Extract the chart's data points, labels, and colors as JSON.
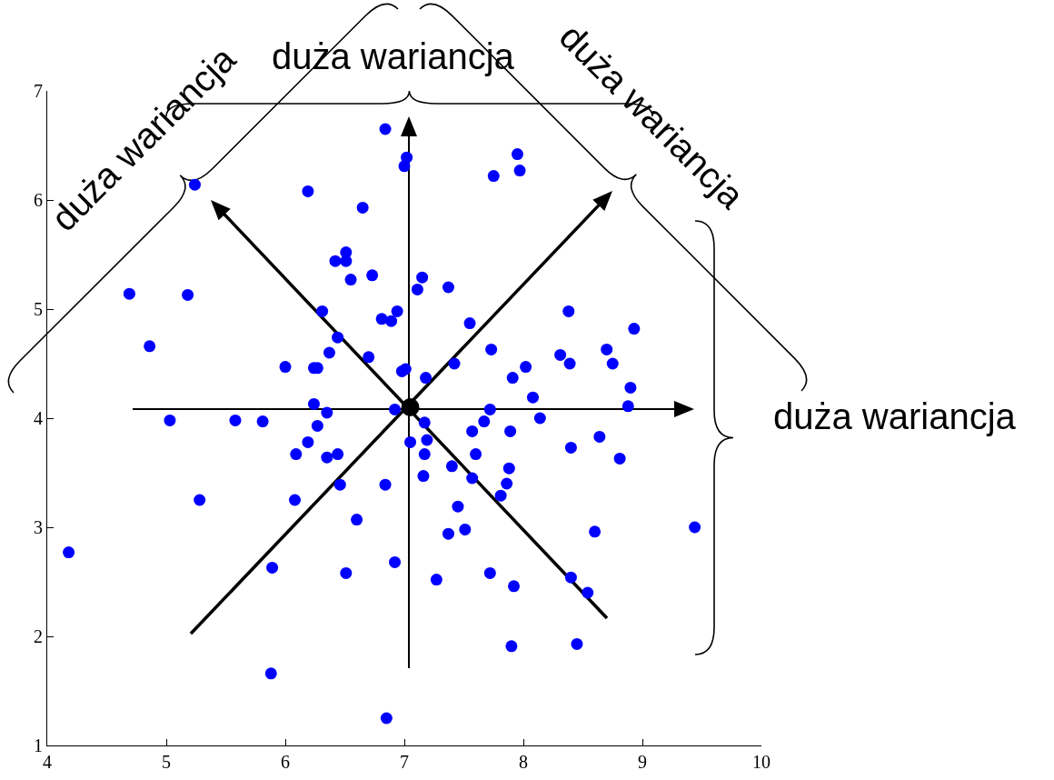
{
  "chart_data": {
    "type": "scatter",
    "xlim": [
      4,
      10
    ],
    "xticks": [
      4,
      5,
      6,
      7,
      8,
      9,
      10
    ],
    "ylim": [
      1,
      7
    ],
    "yticks": [
      1,
      2,
      3,
      4,
      5,
      6,
      7
    ],
    "grid": false,
    "marker": "circle",
    "annotations": [
      "duża wariancja",
      "duża wariancja",
      "duża wariancja",
      "duża wariancja"
    ],
    "series": [
      {
        "color": "#0000ff",
        "x": [
          6.84,
          7.02,
          7.0,
          7.95,
          7.97,
          7.75,
          5.24,
          6.19,
          6.65,
          6.51,
          6.42,
          6.51,
          6.55,
          6.73,
          7.15,
          7.11,
          7.37,
          4.69,
          5.18,
          6.31,
          6.94,
          6.81,
          6.89,
          7.55,
          8.38,
          8.93,
          6.44,
          4.86,
          6.7,
          7.73,
          8.7,
          6.37,
          8.31,
          8.75,
          8.39,
          7.42,
          6.0,
          6.24,
          6.27,
          7.01,
          6.98,
          8.02,
          7.18,
          7.91,
          8.9,
          8.08,
          6.24,
          8.88,
          7.72,
          6.92,
          8.14,
          6.35,
          5.03,
          5.58,
          5.81,
          7.17,
          7.67,
          6.27,
          7.57,
          7.89,
          6.19,
          7.05,
          7.19,
          6.09,
          6.35,
          6.44,
          7.17,
          7.6,
          8.4,
          8.64,
          8.81,
          7.4,
          7.88,
          7.16,
          7.57,
          6.46,
          6.84,
          7.86,
          7.81,
          5.28,
          6.08,
          7.45,
          6.6,
          7.51,
          7.37,
          8.6,
          9.44,
          4.18,
          5.89,
          6.92,
          6.51,
          7.27,
          7.72,
          8.4,
          7.92,
          8.54,
          5.88,
          7.9,
          8.45,
          6.85
        ],
        "values": [
          6.65,
          6.39,
          6.31,
          6.42,
          6.27,
          6.22,
          6.14,
          6.08,
          5.93,
          5.52,
          5.44,
          5.44,
          5.27,
          5.31,
          5.29,
          5.18,
          5.2,
          5.14,
          5.13,
          4.98,
          4.98,
          4.91,
          4.89,
          4.87,
          4.98,
          4.82,
          4.74,
          4.66,
          4.56,
          4.63,
          4.63,
          4.6,
          4.58,
          4.5,
          4.5,
          4.5,
          4.47,
          4.46,
          4.46,
          4.45,
          4.43,
          4.47,
          4.37,
          4.37,
          4.28,
          4.19,
          4.13,
          4.11,
          4.08,
          4.08,
          4.0,
          4.05,
          3.98,
          3.98,
          3.97,
          3.96,
          3.97,
          3.93,
          3.88,
          3.88,
          3.78,
          3.78,
          3.8,
          3.67,
          3.64,
          3.67,
          3.67,
          3.67,
          3.73,
          3.83,
          3.63,
          3.56,
          3.54,
          3.47,
          3.45,
          3.39,
          3.39,
          3.4,
          3.29,
          3.25,
          3.25,
          3.19,
          3.07,
          2.98,
          2.94,
          2.96,
          3.0,
          2.77,
          2.63,
          2.68,
          2.58,
          2.52,
          2.58,
          2.54,
          2.46,
          2.4,
          1.66,
          1.91,
          1.93,
          1.25
        ]
      },
      {
        "color": "#000000",
        "x": [
          7.05
        ],
        "values": [
          4.1
        ]
      }
    ]
  }
}
